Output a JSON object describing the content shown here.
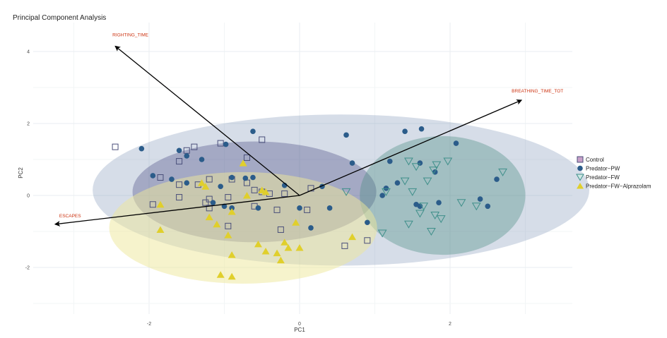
{
  "chart_data": {
    "type": "scatter",
    "title": "Principal Component Analysis",
    "xlabel": "PC1",
    "ylabel": "PC2",
    "xlim": [
      -3.2,
      3.4
    ],
    "ylim": [
      -3.2,
      4.6
    ],
    "x_ticks": [
      -2,
      0,
      2
    ],
    "y_ticks": [
      -2,
      0,
      2,
      4
    ],
    "grid": true,
    "legend_position": "right",
    "colors": {
      "control": "#4a4f7a",
      "predator_pw": "#2b5c8a",
      "predator_fw": "#3f8f8a",
      "alprazolam": "#e0cf2c",
      "arrow": "#000000",
      "arrow_label": "#cc3311"
    },
    "series": [
      {
        "name": "Control",
        "marker": "square",
        "ellipse": {
          "cx": -0.6,
          "cy": 0.1,
          "rx": 1.62,
          "ry": 1.4,
          "fill": "#3b3b7a",
          "opacity": 0.32
        },
        "points": [
          [
            -2.45,
            1.35
          ],
          [
            -1.6,
            0.95
          ],
          [
            -1.5,
            1.25
          ],
          [
            -1.4,
            1.35
          ],
          [
            -1.05,
            1.45
          ],
          [
            -0.7,
            1.05
          ],
          [
            -0.5,
            1.55
          ],
          [
            -1.85,
            0.5
          ],
          [
            -1.6,
            0.3
          ],
          [
            -1.35,
            0.3
          ],
          [
            -1.2,
            0.45
          ],
          [
            -1.25,
            -0.2
          ],
          [
            -0.9,
            0.45
          ],
          [
            -0.7,
            0.35
          ],
          [
            -0.6,
            0.15
          ],
          [
            -0.5,
            0.1
          ],
          [
            -0.4,
            0.05
          ],
          [
            -0.6,
            -0.3
          ],
          [
            -0.3,
            -0.4
          ],
          [
            -0.2,
            0.05
          ],
          [
            0.15,
            0.2
          ],
          [
            -1.6,
            -0.05
          ],
          [
            -1.2,
            -0.1
          ],
          [
            -0.95,
            -0.05
          ],
          [
            -1.95,
            -0.25
          ],
          [
            -1.2,
            -0.35
          ],
          [
            -0.95,
            -0.85
          ],
          [
            -0.25,
            -0.95
          ],
          [
            0.1,
            -0.4
          ],
          [
            0.6,
            -1.4
          ],
          [
            0.9,
            -1.25
          ]
        ]
      },
      {
        "name": "Predator−PW",
        "marker": "circle",
        "ellipse": {
          "cx": 0.55,
          "cy": 0.15,
          "rx": 3.3,
          "ry": 2.1,
          "fill": "#7f95b7",
          "opacity": 0.32
        },
        "points": [
          [
            -2.1,
            1.3
          ],
          [
            -1.6,
            1.25
          ],
          [
            -1.5,
            1.1
          ],
          [
            -1.3,
            1.0
          ],
          [
            -0.98,
            1.42
          ],
          [
            -0.62,
            1.78
          ],
          [
            -0.9,
            0.5
          ],
          [
            -0.72,
            0.48
          ],
          [
            -0.62,
            0.5
          ],
          [
            -1.95,
            0.55
          ],
          [
            -1.7,
            0.45
          ],
          [
            -1.5,
            0.35
          ],
          [
            -1.15,
            -0.2
          ],
          [
            -1.0,
            -0.3
          ],
          [
            -0.9,
            -0.35
          ],
          [
            -0.55,
            -0.35
          ],
          [
            -0.2,
            0.28
          ],
          [
            0.3,
            0.25
          ],
          [
            0.0,
            -0.35
          ],
          [
            0.15,
            -0.9
          ],
          [
            0.4,
            -0.35
          ],
          [
            -1.05,
            0.25
          ],
          [
            0.62,
            1.68
          ],
          [
            0.7,
            0.9
          ],
          [
            1.2,
            0.95
          ],
          [
            1.4,
            1.78
          ],
          [
            1.62,
            1.85
          ],
          [
            2.08,
            1.45
          ],
          [
            1.6,
            0.9
          ],
          [
            1.3,
            0.35
          ],
          [
            1.1,
            0.0
          ],
          [
            1.15,
            0.2
          ],
          [
            1.55,
            -0.25
          ],
          [
            1.85,
            -0.2
          ],
          [
            1.6,
            -0.3
          ],
          [
            0.9,
            -0.75
          ],
          [
            2.5,
            -0.3
          ],
          [
            2.4,
            -0.1
          ],
          [
            2.62,
            0.45
          ],
          [
            1.8,
            0.65
          ]
        ]
      },
      {
        "name": "Predator−FW",
        "marker": "triangle-down",
        "ellipse": {
          "cx": 1.9,
          "cy": 0.0,
          "rx": 1.1,
          "ry": 1.65,
          "fill": "#4f8f84",
          "opacity": 0.38
        },
        "points": [
          [
            1.45,
            0.95
          ],
          [
            1.55,
            0.8
          ],
          [
            1.82,
            0.85
          ],
          [
            1.78,
            0.7
          ],
          [
            1.97,
            0.95
          ],
          [
            2.7,
            0.65
          ],
          [
            1.4,
            0.4
          ],
          [
            1.7,
            0.4
          ],
          [
            1.5,
            0.1
          ],
          [
            1.65,
            -0.3
          ],
          [
            1.8,
            -0.55
          ],
          [
            1.88,
            -0.65
          ],
          [
            1.6,
            -0.5
          ],
          [
            1.45,
            -0.8
          ],
          [
            1.75,
            -1.0
          ],
          [
            2.15,
            -0.2
          ],
          [
            2.35,
            -0.3
          ],
          [
            0.62,
            0.1
          ],
          [
            1.1,
            -1.05
          ],
          [
            1.15,
            0.1
          ]
        ]
      },
      {
        "name": "Predator−FW−Alprazolam",
        "marker": "triangle-up",
        "ellipse": {
          "cx": -0.75,
          "cy": -0.9,
          "rx": 1.78,
          "ry": 1.55,
          "fill": "#ede89a",
          "opacity": 0.5
        },
        "points": [
          [
            -1.85,
            -0.25
          ],
          [
            -1.85,
            -0.95
          ],
          [
            -1.3,
            0.35
          ],
          [
            -1.2,
            -0.6
          ],
          [
            -1.25,
            0.25
          ],
          [
            -1.1,
            -0.8
          ],
          [
            -0.9,
            -0.45
          ],
          [
            -0.7,
            0.0
          ],
          [
            -0.75,
            0.9
          ],
          [
            -0.5,
            0.15
          ],
          [
            -0.45,
            0.1
          ],
          [
            -0.55,
            -1.35
          ],
          [
            -0.45,
            -1.55
          ],
          [
            -0.3,
            -1.6
          ],
          [
            -0.2,
            -1.3
          ],
          [
            -0.15,
            -1.45
          ],
          [
            -0.25,
            -1.8
          ],
          [
            0.0,
            -1.45
          ],
          [
            -0.05,
            -0.75
          ],
          [
            -0.95,
            -1.1
          ],
          [
            -0.9,
            -1.65
          ],
          [
            -0.9,
            -2.25
          ],
          [
            -1.05,
            -2.2
          ],
          [
            0.7,
            -1.15
          ]
        ]
      }
    ],
    "loadings": [
      {
        "label": "RIGHTING_TIME",
        "x": -2.45,
        "y": 4.15
      },
      {
        "label": "BREATHING_TIME_TOT",
        "x": 2.95,
        "y": 2.65
      },
      {
        "label": "ESCAPES",
        "x": -3.25,
        "y": -0.8
      }
    ],
    "legend": [
      {
        "label": "Control",
        "marker": "square"
      },
      {
        "label": "Predator−PW",
        "marker": "circle"
      },
      {
        "label": "Predator−FW",
        "marker": "triangle-down"
      },
      {
        "label": "Predator−FW−Alprazolam",
        "marker": "triangle-up"
      }
    ]
  }
}
